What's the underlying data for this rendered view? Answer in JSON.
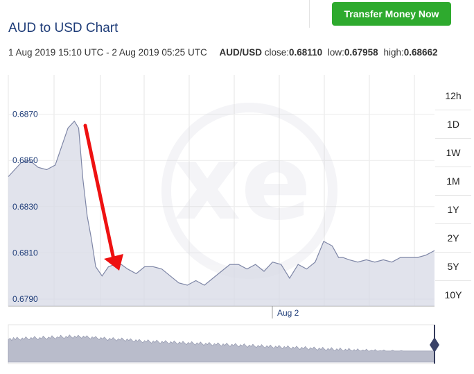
{
  "header": {
    "transfer_button": "Transfer Money Now",
    "title": "AUD to USD Chart"
  },
  "range": {
    "dates": "1 Aug 2019 15:10 UTC - 2 Aug 2019 05:25 UTC",
    "pair": "AUD/USD",
    "close_label": "close:",
    "close_value": "0.68110",
    "low_label": "low:",
    "low_value": "0.67958",
    "high_label": "high:",
    "high_value": "0.68662"
  },
  "periods": [
    "12h",
    "1D",
    "1W",
    "1M",
    "1Y",
    "2Y",
    "5Y",
    "10Y"
  ],
  "colors": {
    "title": "#1e3c78",
    "button": "#2eaa2e",
    "line": "#7e86a6",
    "fill": "#d7dae6",
    "arrow": "#ee1111"
  },
  "chart_data": {
    "type": "area",
    "y_ticks": [
      "0.6870",
      "0.6850",
      "0.6830",
      "0.6810",
      "0.6790"
    ],
    "x_ticks": [
      "Aug 2"
    ],
    "ylim": [
      0.6787,
      0.6887
    ],
    "x": [
      0,
      0.03,
      0.05,
      0.07,
      0.09,
      0.11,
      0.125,
      0.14,
      0.155,
      0.165,
      0.175,
      0.185,
      0.195,
      0.205,
      0.22,
      0.235,
      0.25,
      0.265,
      0.28,
      0.3,
      0.32,
      0.34,
      0.36,
      0.38,
      0.4,
      0.42,
      0.44,
      0.46,
      0.48,
      0.5,
      0.52,
      0.54,
      0.56,
      0.58,
      0.6,
      0.62,
      0.64,
      0.66,
      0.68,
      0.7,
      0.72,
      0.74,
      0.76,
      0.775,
      0.785,
      0.8,
      0.82,
      0.84,
      0.86,
      0.88,
      0.9,
      0.92,
      0.94,
      0.96,
      0.98,
      1.0
    ],
    "values": [
      0.6843,
      0.6849,
      0.685,
      0.6847,
      0.6846,
      0.6848,
      0.6856,
      0.6864,
      0.6867,
      0.6864,
      0.6842,
      0.6826,
      0.6816,
      0.6804,
      0.68,
      0.6804,
      0.6805,
      0.6805,
      0.6803,
      0.6801,
      0.6804,
      0.6804,
      0.6803,
      0.68,
      0.6797,
      0.6796,
      0.6798,
      0.6796,
      0.6799,
      0.6802,
      0.6805,
      0.6805,
      0.6803,
      0.6805,
      0.6802,
      0.6806,
      0.6805,
      0.6799,
      0.6805,
      0.6803,
      0.6806,
      0.6815,
      0.6813,
      0.6808,
      0.6808,
      0.6807,
      0.6806,
      0.6807,
      0.6806,
      0.6807,
      0.6806,
      0.6808,
      0.6808,
      0.6808,
      0.6809,
      0.6811
    ],
    "nav_values": [
      0.61,
      0.64,
      0.58,
      0.66,
      0.6,
      0.67,
      0.62,
      0.59,
      0.65,
      0.61,
      0.68,
      0.63,
      0.6,
      0.66,
      0.62,
      0.69,
      0.64,
      0.6,
      0.66,
      0.63,
      0.7,
      0.65,
      0.61,
      0.67,
      0.64,
      0.71,
      0.66,
      0.62,
      0.68,
      0.65,
      0.72,
      0.67,
      0.63,
      0.69,
      0.66,
      0.73,
      0.68,
      0.64,
      0.7,
      0.66,
      0.72,
      0.68,
      0.64,
      0.7,
      0.66,
      0.71,
      0.66,
      0.62,
      0.68,
      0.64,
      0.69,
      0.64,
      0.6,
      0.66,
      0.62,
      0.67,
      0.62,
      0.58,
      0.64,
      0.6,
      0.66,
      0.61,
      0.57,
      0.63,
      0.59,
      0.65,
      0.6,
      0.56,
      0.62,
      0.58,
      0.63,
      0.58,
      0.54,
      0.6,
      0.56,
      0.61,
      0.56,
      0.52,
      0.58,
      0.54,
      0.6,
      0.55,
      0.51,
      0.57,
      0.53,
      0.59,
      0.54,
      0.5,
      0.56,
      0.52,
      0.58,
      0.53,
      0.49,
      0.55,
      0.51,
      0.57,
      0.52,
      0.48,
      0.54,
      0.5,
      0.56,
      0.51,
      0.47,
      0.53,
      0.49,
      0.55,
      0.5,
      0.46,
      0.52,
      0.48,
      0.54,
      0.49,
      0.45,
      0.51,
      0.47,
      0.53,
      0.48,
      0.44,
      0.5,
      0.46,
      0.52,
      0.47,
      0.43,
      0.49,
      0.45,
      0.51,
      0.46,
      0.42,
      0.48,
      0.44,
      0.5,
      0.45,
      0.41,
      0.47,
      0.43,
      0.49,
      0.44,
      0.4,
      0.46,
      0.42,
      0.48,
      0.43,
      0.39,
      0.45,
      0.41,
      0.47,
      0.42,
      0.38,
      0.44,
      0.4,
      0.46,
      0.41,
      0.37,
      0.43,
      0.39,
      0.45,
      0.4,
      0.36,
      0.42,
      0.38,
      0.44,
      0.39,
      0.35,
      0.41,
      0.37,
      0.43,
      0.38,
      0.34,
      0.4,
      0.36,
      0.42,
      0.37,
      0.33,
      0.39,
      0.35,
      0.41,
      0.36,
      0.32,
      0.38,
      0.34,
      0.4,
      0.35,
      0.31,
      0.37,
      0.33,
      0.39,
      0.34,
      0.3,
      0.36,
      0.32,
      0.38,
      0.33,
      0.3,
      0.35,
      0.31,
      0.37,
      0.32,
      0.3,
      0.34,
      0.3,
      0.36,
      0.31,
      0.3,
      0.33,
      0.3,
      0.35,
      0.3,
      0.3,
      0.32,
      0.3,
      0.34,
      0.3,
      0.3,
      0.31,
      0.3,
      0.33,
      0.3,
      0.3,
      0.3,
      0.3,
      0.32,
      0.3,
      0.3,
      0.3,
      0.3,
      0.31,
      0.3,
      0.3,
      0.3,
      0.3,
      0.3,
      0.3,
      0.3,
      0.3,
      0.3,
      0.3,
      0.3,
      0.3,
      0.3,
      0.3,
      0.3,
      0.3,
      0.3,
      0.3,
      0.3
    ],
    "grid": true,
    "watermark": "xe"
  }
}
